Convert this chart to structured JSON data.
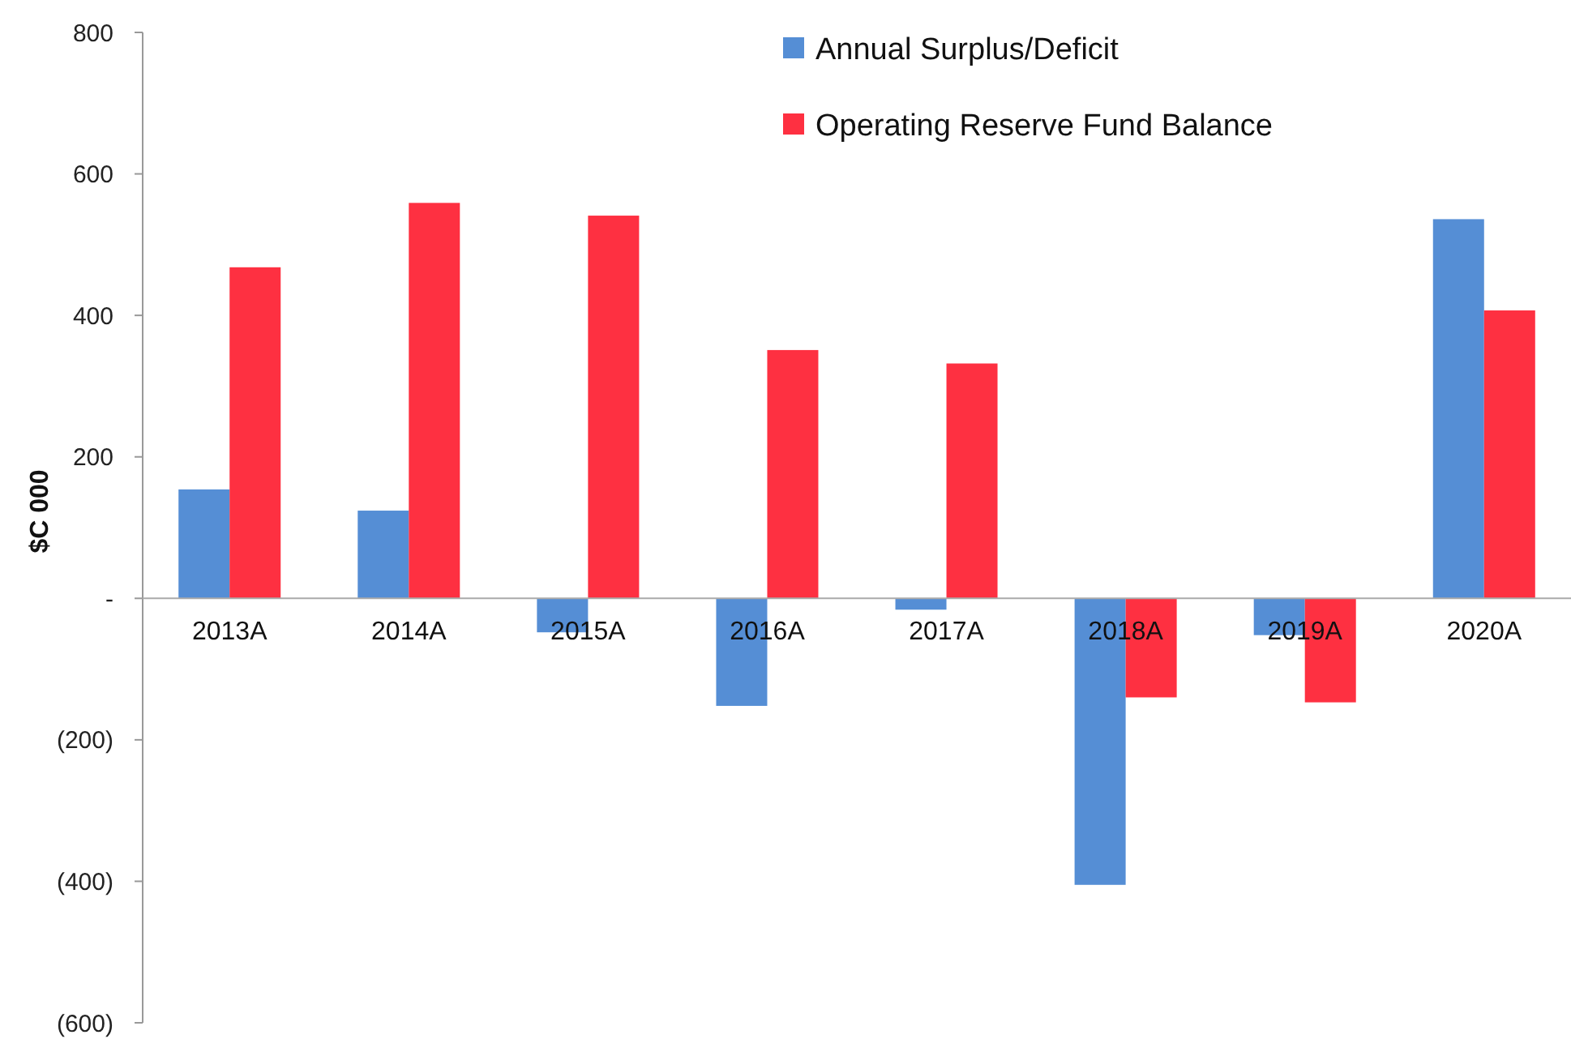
{
  "chart_data": {
    "type": "bar",
    "ylabel": "$C 000",
    "categories": [
      "2013A",
      "2014A",
      "2015A",
      "2016A",
      "2017A",
      "2018A",
      "2019A",
      "2020A"
    ],
    "series": [
      {
        "name": "Annual Surplus/Deficit",
        "color": "#558ed5",
        "values": [
          154,
          124,
          -48,
          -152,
          -16,
          -405,
          -52,
          536
        ]
      },
      {
        "name": "Operating Reserve Fund Balance",
        "color": "#fe3041",
        "values": [
          468,
          559,
          541,
          351,
          332,
          -140,
          -147,
          407
        ]
      }
    ],
    "ylim": [
      -600,
      800
    ],
    "yticks": [
      {
        "value": -600,
        "label": "(600)"
      },
      {
        "value": -400,
        "label": "(400)"
      },
      {
        "value": -200,
        "label": "(200)"
      },
      {
        "value": 0,
        "label": "-"
      },
      200,
      400,
      600,
      800
    ],
    "grid": false,
    "legend": "top right"
  }
}
